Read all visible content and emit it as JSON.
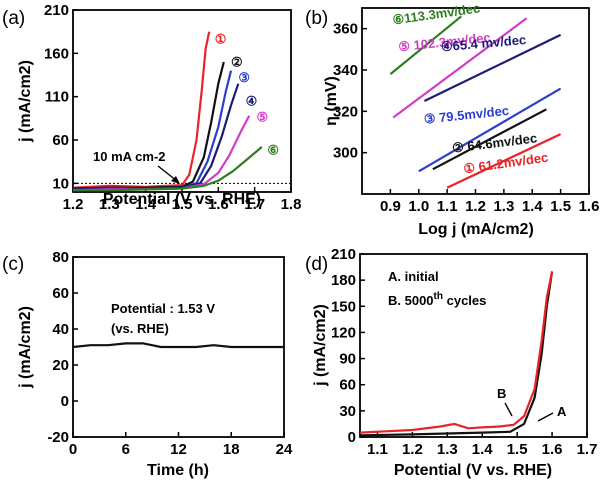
{
  "chart_data": [
    {
      "panel": "(a)",
      "type": "line",
      "xlabel_prefix": "Potential (",
      "xlabel_suffix": "V vs. RHE)",
      "ylabel": "j (mA/cm2)",
      "xlim": [
        1.2,
        1.8
      ],
      "ylim": [
        0,
        210
      ],
      "xticks": [
        1.2,
        1.3,
        1.4,
        1.5,
        1.6,
        1.7,
        1.8
      ],
      "yticks": [
        10,
        60,
        110,
        160,
        210
      ],
      "reference_line": {
        "y": 10,
        "style": "dotted",
        "label": "10 mA cm-2"
      },
      "series": [
        {
          "name": "①",
          "color": "#e8232a",
          "x": [
            1.2,
            1.3,
            1.4,
            1.5,
            1.52,
            1.54,
            1.555,
            1.565,
            1.575
          ],
          "y": [
            5,
            7,
            6,
            8,
            20,
            60,
            120,
            165,
            185
          ]
        },
        {
          "name": "②",
          "color": "#111111",
          "x": [
            1.2,
            1.3,
            1.4,
            1.5,
            1.53,
            1.56,
            1.58,
            1.6,
            1.615
          ],
          "y": [
            4,
            5,
            5,
            6,
            12,
            40,
            80,
            125,
            150
          ]
        },
        {
          "name": "③",
          "color": "#2b3ecf",
          "x": [
            1.2,
            1.3,
            1.4,
            1.5,
            1.54,
            1.57,
            1.6,
            1.62,
            1.635
          ],
          "y": [
            3,
            4,
            4,
            5,
            10,
            35,
            75,
            115,
            140
          ]
        },
        {
          "name": "④",
          "color": "#1b1b7a",
          "x": [
            1.2,
            1.3,
            1.4,
            1.5,
            1.55,
            1.58,
            1.61,
            1.635,
            1.655
          ],
          "y": [
            3,
            3,
            4,
            5,
            10,
            30,
            65,
            100,
            125
          ]
        },
        {
          "name": "⑤",
          "color": "#d23cc8",
          "x": [
            1.2,
            1.3,
            1.4,
            1.5,
            1.56,
            1.6,
            1.63,
            1.66,
            1.685
          ],
          "y": [
            2,
            3,
            3,
            4,
            9,
            22,
            42,
            68,
            88
          ]
        },
        {
          "name": "⑥",
          "color": "#2e7d1e",
          "x": [
            1.2,
            1.3,
            1.4,
            1.5,
            1.56,
            1.6,
            1.64,
            1.68,
            1.72
          ],
          "y": [
            2,
            2,
            3,
            4,
            7,
            13,
            24,
            38,
            52
          ]
        }
      ]
    },
    {
      "panel": "(b)",
      "type": "line",
      "xlabel": "Log j (mA/cm2)",
      "ylabel": "η (mV)",
      "xlim": [
        0.8,
        1.6
      ],
      "ylim": [
        280,
        370
      ],
      "xticks": [
        0.9,
        1.0,
        1.1,
        1.2,
        1.3,
        1.4,
        1.5,
        1.6
      ],
      "yticks": [
        300,
        320,
        340,
        360
      ],
      "series": [
        {
          "name": "⑥113.3mv/dec",
          "color": "#2e7d1e",
          "x": [
            0.9,
            1.15
          ],
          "y": [
            338,
            366
          ]
        },
        {
          "name": "⑤ 102.3mv/dec",
          "color": "#d23cc8",
          "x": [
            0.91,
            1.38
          ],
          "y": [
            317,
            365
          ]
        },
        {
          "name": "④65.4 mv/dec",
          "color": "#1b1b7a",
          "x": [
            1.02,
            1.5
          ],
          "y": [
            325,
            357
          ]
        },
        {
          "name": "③ 79.5mv/dec",
          "color": "#2b3ecf",
          "x": [
            1.0,
            1.5
          ],
          "y": [
            291,
            331
          ]
        },
        {
          "name": "② 64.6mv/dec",
          "color": "#111111",
          "x": [
            1.05,
            1.45
          ],
          "y": [
            292,
            321
          ]
        },
        {
          "name": "① 61.2mv/dec",
          "color": "#e8232a",
          "x": [
            1.1,
            1.5
          ],
          "y": [
            283,
            309
          ]
        }
      ]
    },
    {
      "panel": "(c)",
      "type": "line",
      "xlabel": "Time (h)",
      "ylabel": "j (mA/cm2)",
      "xlim": [
        0,
        24
      ],
      "ylim": [
        -20,
        80
      ],
      "xticks": [
        0,
        6,
        12,
        18,
        24
      ],
      "yticks": [
        -20,
        0,
        20,
        40,
        60,
        80
      ],
      "annotation": [
        "Potential : 1.53 V",
        "(vs. RHE)"
      ],
      "series": [
        {
          "name": "",
          "color": "#111111",
          "x": [
            0,
            2,
            4,
            6,
            8,
            9,
            10,
            12,
            14,
            16,
            18,
            20,
            22,
            24
          ],
          "y": [
            30,
            31,
            31,
            32,
            32,
            31,
            30,
            30,
            30,
            31,
            30,
            30,
            30,
            30
          ]
        }
      ]
    },
    {
      "panel": "(d)",
      "type": "line",
      "xlabel_prefix": "Potential (",
      "xlabel_suffix": "V vs. RHE)",
      "ylabel": "j (mA/cm2)",
      "xlim": [
        1.05,
        1.7
      ],
      "ylim": [
        0,
        210
      ],
      "xticks": [
        1.1,
        1.2,
        1.3,
        1.4,
        1.5,
        1.6,
        1.7
      ],
      "yticks": [
        0,
        30,
        60,
        90,
        120,
        150,
        180,
        210
      ],
      "legend": [
        "A. initial",
        "B. 5000",
        "th",
        " cycles"
      ],
      "labels": {
        "A": "A",
        "B": "B"
      },
      "series": [
        {
          "name": "A",
          "color": "#111111",
          "x": [
            1.05,
            1.2,
            1.3,
            1.4,
            1.48,
            1.52,
            1.55,
            1.57,
            1.585,
            1.6
          ],
          "y": [
            2,
            3,
            4,
            5,
            6,
            15,
            45,
            95,
            150,
            190
          ]
        },
        {
          "name": "B",
          "color": "#e8232a",
          "x": [
            1.05,
            1.2,
            1.28,
            1.32,
            1.36,
            1.4,
            1.45,
            1.49,
            1.52,
            1.55,
            1.57,
            1.585,
            1.6
          ],
          "y": [
            5,
            8,
            12,
            15,
            10,
            11,
            12,
            14,
            24,
            55,
            110,
            160,
            190
          ]
        }
      ]
    }
  ]
}
